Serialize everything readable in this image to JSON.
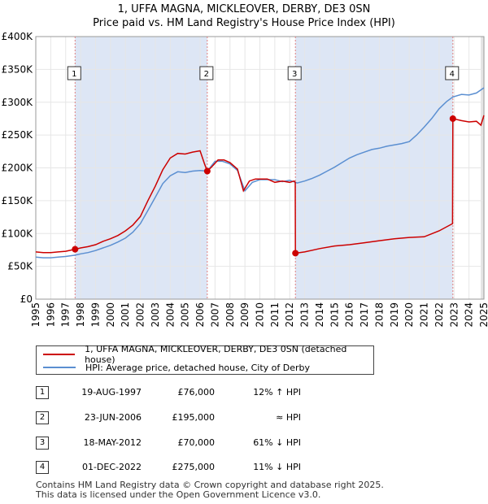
{
  "header": {
    "title_line1": "1, UFFA MAGNA, MICKLEOVER, DERBY, DE3 0SN",
    "title_line2": "Price paid vs. HM Land Registry's House Price Index (HPI)"
  },
  "colors": {
    "property": "#cc0000",
    "hpi": "#5b8fd1",
    "band": "#dde6f5",
    "vline": "#e08080",
    "grid": "#e6e6e6"
  },
  "chart_data": {
    "type": "line",
    "ylim": [
      0,
      400000
    ],
    "yticks": [
      0,
      50000,
      100000,
      150000,
      200000,
      250000,
      300000,
      350000,
      400000
    ],
    "ytick_labels": [
      "£0",
      "£50K",
      "£100K",
      "£150K",
      "£200K",
      "£250K",
      "£300K",
      "£350K",
      "£400K"
    ],
    "xlim": [
      1995,
      2025.0
    ],
    "xtick_labels": [
      "1995",
      "1996",
      "1997",
      "1998",
      "1999",
      "2000",
      "2001",
      "2002",
      "2003",
      "2004",
      "2005",
      "2006",
      "2007",
      "2008",
      "2009",
      "2010",
      "2011",
      "2012",
      "2013",
      "2014",
      "2015",
      "2016",
      "2017",
      "2018",
      "2019",
      "2020",
      "2021",
      "2022",
      "2023",
      "2024",
      "2025"
    ],
    "series": [
      {
        "name": "1, UFFA MAGNA, MICKLEOVER, DERBY, DE3 0SN (detached house)",
        "x": [
          1995.0,
          1995.5,
          1996.0,
          1996.5,
          1997.0,
          1997.63,
          1998.0,
          1998.5,
          1999.0,
          1999.5,
          2000.0,
          2000.5,
          2001.0,
          2001.5,
          2002.0,
          2002.5,
          2003.0,
          2003.5,
          2004.0,
          2004.5,
          2005.0,
          2005.5,
          2006.0,
          2006.3,
          2006.48,
          2006.8,
          2007.2,
          2007.6,
          2008.0,
          2008.5,
          2008.9,
          2009.3,
          2009.7,
          2010.0,
          2010.5,
          2011.0,
          2011.5,
          2012.0,
          2012.3,
          2012.37,
          2012.38,
          2013.0,
          2014.0,
          2015.0,
          2016.0,
          2017.0,
          2018.0,
          2019.0,
          2020.0,
          2021.0,
          2022.0,
          2022.9,
          2022.92,
          2023.5,
          2024.0,
          2024.5,
          2024.8,
          2025.0
        ],
        "values": [
          72000,
          71000,
          71000,
          72000,
          73000,
          76000,
          78000,
          80000,
          83000,
          88000,
          92000,
          97000,
          104000,
          113000,
          126000,
          150000,
          172000,
          197000,
          215000,
          222000,
          221000,
          224000,
          226000,
          206000,
          195000,
          202000,
          212000,
          212000,
          208000,
          198000,
          165000,
          180000,
          183000,
          183000,
          183000,
          178000,
          180000,
          178000,
          180000,
          178000,
          70000,
          72000,
          77000,
          81000,
          83000,
          86000,
          89000,
          92000,
          94000,
          95000,
          104000,
          115000,
          275000,
          272000,
          270000,
          271000,
          265000,
          280000
        ]
      },
      {
        "name": "HPI: Average price, detached house, City of Derby",
        "x": [
          1995.0,
          1995.5,
          1996.0,
          1996.5,
          1997.0,
          1997.63,
          1998.0,
          1998.5,
          1999.0,
          1999.5,
          2000.0,
          2000.5,
          2001.0,
          2001.5,
          2002.0,
          2002.5,
          2003.0,
          2003.5,
          2004.0,
          2004.5,
          2005.0,
          2005.5,
          2006.0,
          2006.48,
          2007.0,
          2007.5,
          2008.0,
          2008.5,
          2009.0,
          2009.5,
          2010.0,
          2010.5,
          2011.0,
          2011.5,
          2012.0,
          2012.38,
          2012.5,
          2013.0,
          2013.5,
          2014.0,
          2014.5,
          2015.0,
          2015.5,
          2016.0,
          2016.5,
          2017.0,
          2017.5,
          2018.0,
          2018.5,
          2019.0,
          2019.5,
          2020.0,
          2020.5,
          2021.0,
          2021.5,
          2022.0,
          2022.5,
          2022.92,
          2023.5,
          2024.0,
          2024.5,
          2025.0
        ],
        "values": [
          64000,
          63000,
          63000,
          64000,
          65000,
          67000,
          69000,
          71000,
          74000,
          78000,
          82000,
          87000,
          93000,
          102000,
          115000,
          135000,
          155000,
          176000,
          188000,
          194000,
          193000,
          195000,
          196000,
          195000,
          210000,
          210000,
          206000,
          196000,
          165000,
          178000,
          182000,
          182000,
          182000,
          179000,
          181000,
          178000,
          177000,
          180000,
          184000,
          189000,
          195000,
          201000,
          208000,
          215000,
          220000,
          224000,
          228000,
          230000,
          233000,
          235000,
          237000,
          240000,
          250000,
          262000,
          275000,
          290000,
          301000,
          308000,
          312000,
          311000,
          314000,
          322000
        ]
      }
    ],
    "sales": [
      {
        "id": "1",
        "x": 1997.63,
        "value": 76000
      },
      {
        "id": "2",
        "x": 2006.48,
        "value": 195000
      },
      {
        "id": "3",
        "x": 2012.38,
        "value": 70000
      },
      {
        "id": "4",
        "x": 2022.92,
        "value": 275000
      }
    ]
  },
  "legend": {
    "property_label": "1, UFFA MAGNA, MICKLEOVER, DERBY, DE3 0SN (detached house)",
    "hpi_label": "HPI: Average price, detached house, City of Derby"
  },
  "transactions": [
    {
      "id": "1",
      "date": "19-AUG-1997",
      "price": "£76,000",
      "hpi": "12% ↑ HPI"
    },
    {
      "id": "2",
      "date": "23-JUN-2006",
      "price": "£195,000",
      "hpi": "≈ HPI"
    },
    {
      "id": "3",
      "date": "18-MAY-2012",
      "price": "£70,000",
      "hpi": "61% ↓ HPI"
    },
    {
      "id": "4",
      "date": "01-DEC-2022",
      "price": "£275,000",
      "hpi": "11% ↓ HPI"
    }
  ],
  "footer": {
    "line1": "Contains HM Land Registry data © Crown copyright and database right 2025.",
    "line2": "This data is licensed under the Open Government Licence v3.0."
  }
}
